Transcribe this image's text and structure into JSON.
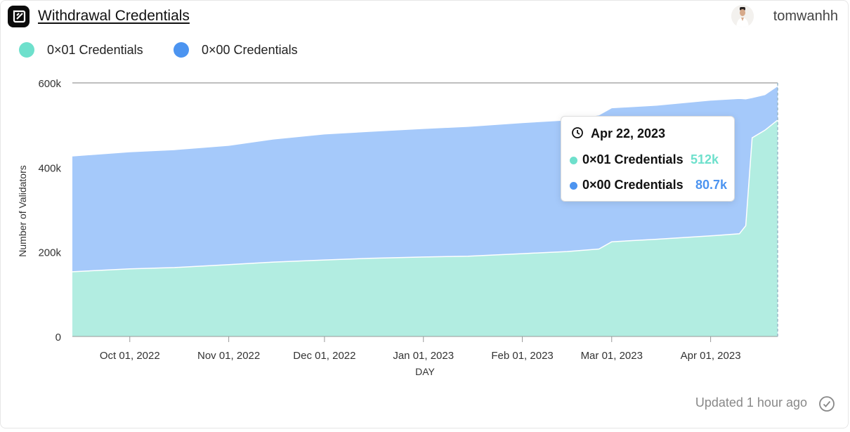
{
  "header": {
    "title": "Withdrawal Credentials",
    "username": "tomwanhh"
  },
  "colors": {
    "teal": "#6ee0cc",
    "teal_fill": "#b2ede1",
    "blue": "#4c94f0",
    "blue_fill": "#a5c9fa",
    "grid": "#2d5fa3",
    "axis": "#999999"
  },
  "chart_data": {
    "type": "area",
    "stacked": true,
    "title": "Withdrawal Credentials",
    "xlabel": "DAY",
    "ylabel": "Number of Validators",
    "ylim": [
      0,
      600000
    ],
    "y_ticks": [
      0,
      200000,
      400000,
      600000
    ],
    "y_tick_labels": [
      "0",
      "200k",
      "400k",
      "600k"
    ],
    "x_range": [
      "2022-09-13",
      "2023-04-22"
    ],
    "x_ticks": [
      {
        "date": "2022-10-01",
        "label": "Oct 01, 2022"
      },
      {
        "date": "2022-11-01",
        "label": "Nov 01, 2022"
      },
      {
        "date": "2022-12-01",
        "label": "Dec 01, 2022"
      },
      {
        "date": "2023-01-01",
        "label": "Jan 01, 2023"
      },
      {
        "date": "2023-02-01",
        "label": "Feb 01, 2023"
      },
      {
        "date": "2023-03-01",
        "label": "Mar 01, 2023"
      },
      {
        "date": "2023-04-01",
        "label": "Apr 01, 2023"
      }
    ],
    "x": [
      "2022-09-13",
      "2022-10-01",
      "2022-10-15",
      "2022-11-01",
      "2022-11-15",
      "2022-12-01",
      "2022-12-15",
      "2023-01-01",
      "2023-01-15",
      "2023-02-01",
      "2023-02-15",
      "2023-02-25",
      "2023-03-01",
      "2023-03-15",
      "2023-04-01",
      "2023-04-10",
      "2023-04-12",
      "2023-04-14",
      "2023-04-18",
      "2023-04-22"
    ],
    "series": [
      {
        "name": "0×01 Credentials",
        "values": [
          153000,
          160000,
          163000,
          170000,
          176000,
          181000,
          185000,
          188000,
          190000,
          196000,
          201000,
          207000,
          224000,
          230000,
          238000,
          243000,
          262000,
          470000,
          488000,
          512000
        ]
      },
      {
        "name": "0×00 Credentials",
        "values": [
          274000,
          277000,
          279000,
          282000,
          291000,
          298000,
          300000,
          304000,
          307000,
          310000,
          311000,
          317000,
          317000,
          317000,
          321000,
          320000,
          300000,
          95000,
          84000,
          80700
        ]
      }
    ],
    "legend": [
      {
        "label": "0×01 Credentials",
        "color": "#6ee0cc"
      },
      {
        "label": "0×00 Credentials",
        "color": "#4c94f0"
      }
    ],
    "legend_position": "top-left",
    "tooltip": {
      "date": "Apr 22, 2023",
      "rows": [
        {
          "label": "0×01 Credentials",
          "value": "512k",
          "color": "#6ee0cc"
        },
        {
          "label": "0×00 Credentials",
          "value": "80.7k",
          "color": "#4c94f0"
        }
      ]
    }
  },
  "footer": {
    "updated": "Updated 1 hour ago"
  }
}
